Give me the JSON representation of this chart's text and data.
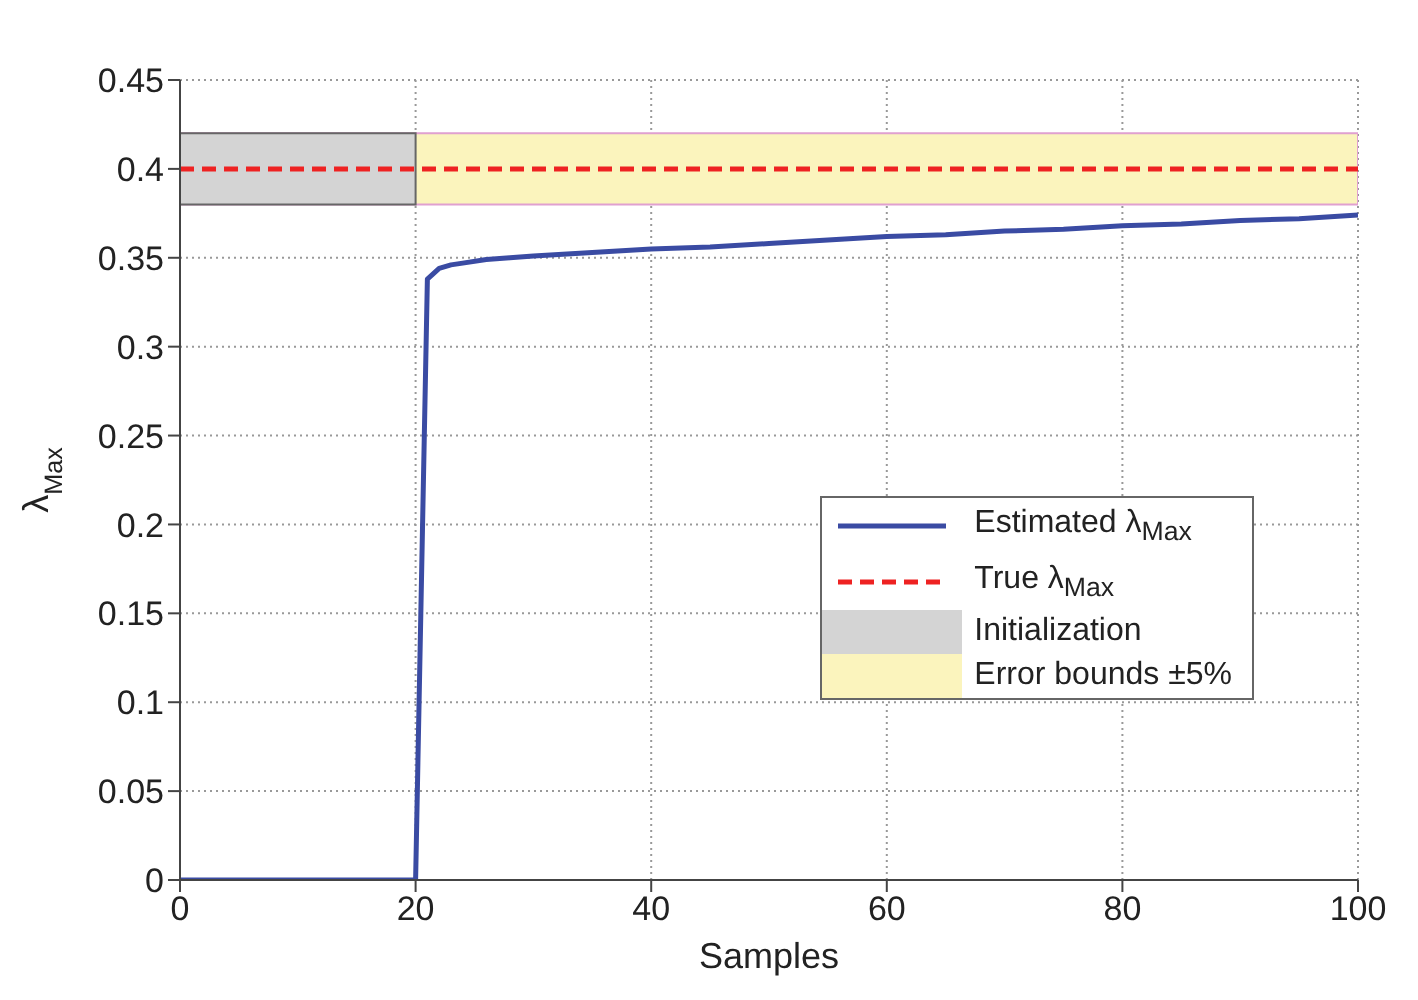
{
  "chart_data": {
    "type": "line",
    "xlabel": "Samples",
    "ylabel": "λ$_{Max}$",
    "x": [
      0,
      5,
      10,
      15,
      20,
      21,
      22,
      23,
      24,
      26,
      28,
      30,
      35,
      40,
      45,
      50,
      55,
      60,
      65,
      70,
      75,
      80,
      85,
      90,
      95,
      100
    ],
    "series": [
      {
        "name": "Estimated λ$_{Max}$",
        "color": "#3a4ba3",
        "values": [
          0,
          0,
          0,
          0,
          0,
          0.338,
          0.344,
          0.346,
          0.347,
          0.349,
          0.35,
          0.351,
          0.353,
          0.355,
          0.356,
          0.358,
          0.36,
          0.362,
          0.363,
          0.365,
          0.366,
          0.368,
          0.369,
          0.371,
          0.372,
          0.374
        ]
      }
    ],
    "xlim": [
      0,
      100
    ],
    "xticks": [
      0,
      20,
      40,
      60,
      80,
      100
    ],
    "ylim": [
      0,
      0.45
    ],
    "yticks": [
      0,
      0.05,
      0.1,
      0.15,
      0.2,
      0.25,
      0.3,
      0.35,
      0.4,
      0.45
    ],
    "ref_lines": [
      {
        "axis": "y",
        "value": 0.4,
        "label": "True λ$_{Max}$",
        "color": "#ee2222",
        "line_style": "dashed"
      }
    ],
    "bands": [
      {
        "axis": "y",
        "from": 0.38,
        "to": 0.42,
        "label": "Error bounds ±5%",
        "color": "#fbf4bd"
      },
      {
        "axis": "x",
        "from": 0,
        "to": 20,
        "label": "Initialization",
        "color": "#d4d4d4"
      }
    ],
    "grid": true,
    "legend": "right",
    "line_style": "solid"
  }
}
